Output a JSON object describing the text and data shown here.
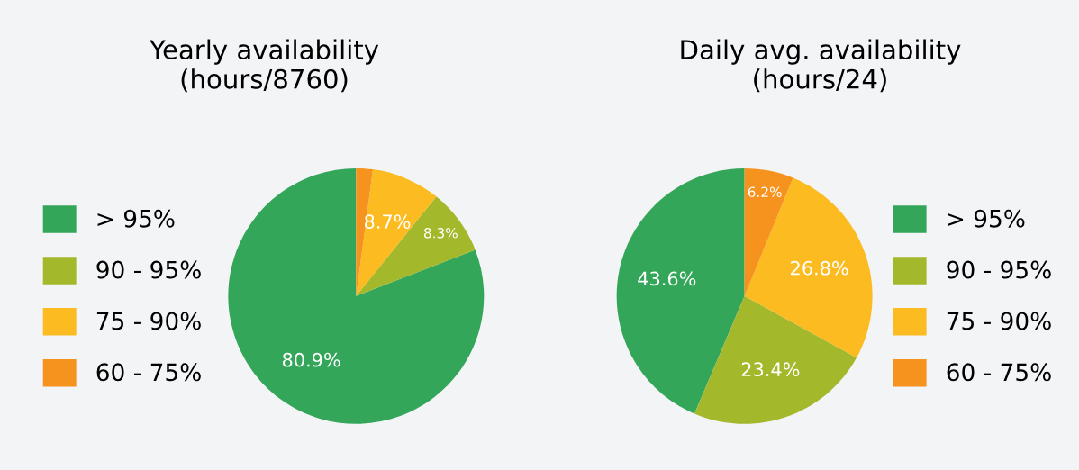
{
  "chart_data": [
    {
      "type": "pie",
      "title": "Yearly availability\n(hours/8760)",
      "categories": [
        "> 95%",
        "90 - 95%",
        "75 - 90%",
        "60 - 75%"
      ],
      "values": [
        80.9,
        8.3,
        8.7,
        2.1
      ],
      "value_labels": [
        "80.9%",
        "8.3%",
        "8.7%",
        null
      ],
      "colors": [
        "#34a65a",
        "#a3b82a",
        "#fbbb21",
        "#f6921e"
      ],
      "legend": "left"
    },
    {
      "type": "pie",
      "title": "Daily avg. availability\n(hours/24)",
      "categories": [
        "> 95%",
        "90 - 95%",
        "75 - 90%",
        "60 - 75%"
      ],
      "values": [
        43.6,
        23.4,
        26.8,
        6.2
      ],
      "value_labels": [
        "43.6%",
        "23.4%",
        "26.8%",
        "6.2%"
      ],
      "colors": [
        "#34a65a",
        "#a3b82a",
        "#fbbb21",
        "#f6921e"
      ],
      "legend": "right"
    }
  ]
}
